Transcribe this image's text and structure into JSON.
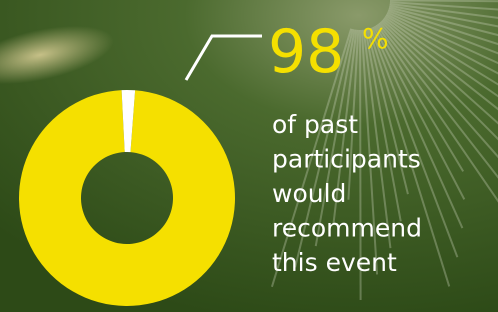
{
  "chart_data": {
    "type": "pie",
    "values": [
      98,
      2
    ],
    "value_labels": [
      "98",
      null
    ],
    "colors": [
      "#f5e000",
      "#ffffff"
    ],
    "unit": "%",
    "caption": [
      "of past",
      "participants",
      "would",
      "recommend",
      "this event"
    ]
  }
}
